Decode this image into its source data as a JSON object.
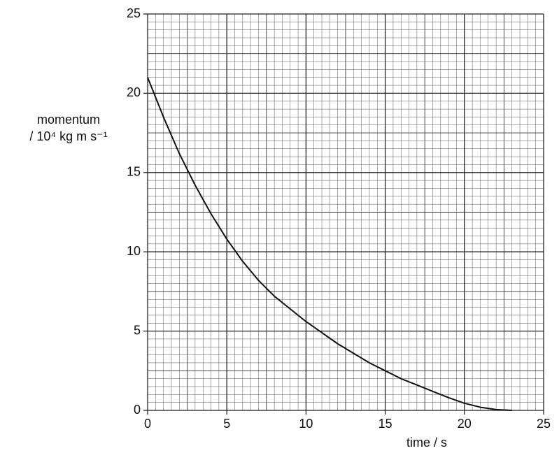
{
  "chart_data": {
    "type": "line",
    "x_label": "time / s",
    "y_label": [
      "momentum",
      "/ 10⁴ kg m s⁻¹"
    ],
    "x": [
      0,
      1,
      2,
      3,
      4,
      5,
      6,
      7,
      8,
      9,
      10,
      11,
      12,
      13,
      14,
      15,
      16,
      17,
      18,
      19,
      20,
      21,
      22,
      23
    ],
    "series": [
      {
        "color": "#111111",
        "values": [
          21,
          18.5,
          16.2,
          14.2,
          12.4,
          10.8,
          9.4,
          8.2,
          7.2,
          6.4,
          5.6,
          4.9,
          4.2,
          3.6,
          3.0,
          2.5,
          2.0,
          1.6,
          1.2,
          0.8,
          0.45,
          0.2,
          0.05,
          0
        ]
      }
    ],
    "xlim": [
      0,
      25
    ],
    "ylim": [
      0,
      25
    ],
    "xticks": [
      0,
      5,
      10,
      15,
      20,
      25
    ],
    "yticks": [
      0,
      5,
      10,
      15,
      20,
      25
    ],
    "grid": true
  }
}
